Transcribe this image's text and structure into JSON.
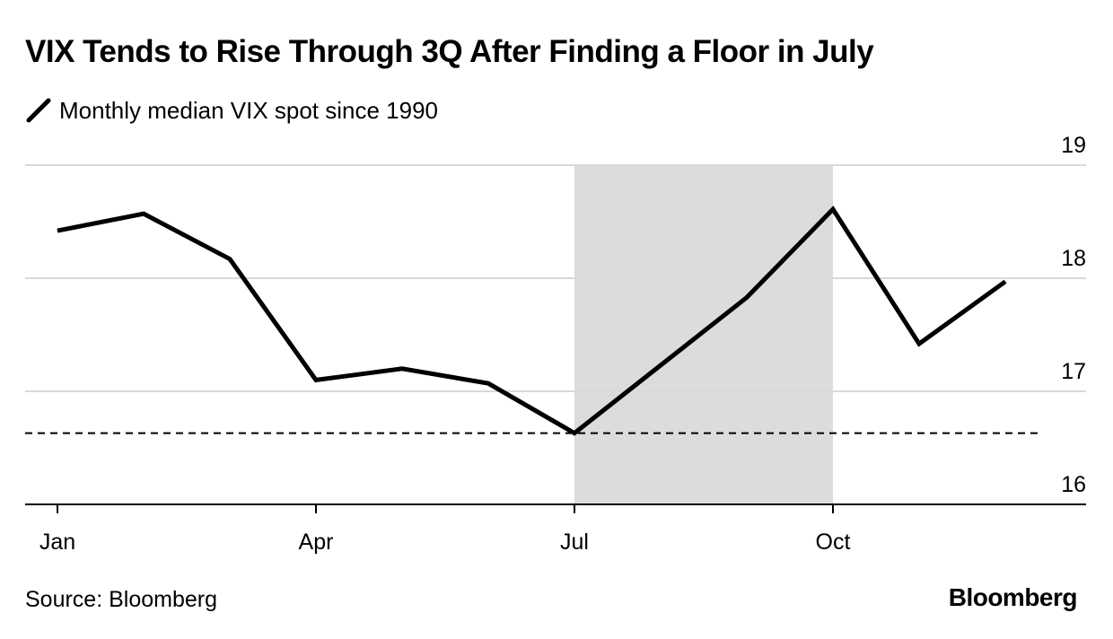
{
  "chart_data": {
    "type": "line",
    "title": "VIX Tends to Rise Through 3Q After Finding a Floor in July",
    "series": [
      {
        "name": "Monthly median VIX spot since 1990",
        "color": "#000000",
        "values": [
          18.42,
          18.57,
          18.17,
          17.1,
          17.2,
          17.07,
          16.63,
          17.23,
          17.83,
          18.61,
          17.42,
          17.97
        ]
      }
    ],
    "x": [
      1,
      2,
      3,
      4,
      5,
      6,
      7,
      8,
      9,
      10,
      11,
      12
    ],
    "x_ticks": [
      {
        "x": 1,
        "label": "Jan"
      },
      {
        "x": 4,
        "label": "Apr"
      },
      {
        "x": 7,
        "label": "Jul"
      },
      {
        "x": 10,
        "label": "Oct"
      }
    ],
    "y_ticks": [
      16,
      17,
      18,
      19
    ],
    "ylim": [
      16,
      19
    ],
    "xlabel": "",
    "ylabel": "",
    "y_axis_side": "right",
    "grid": true,
    "reference_line": {
      "value": 16.63,
      "style": "dashed"
    },
    "shaded_region": {
      "from": 7,
      "to": 10,
      "color": "#dcdcdc"
    }
  },
  "source": "Source: Bloomberg",
  "brand": "Bloomberg"
}
